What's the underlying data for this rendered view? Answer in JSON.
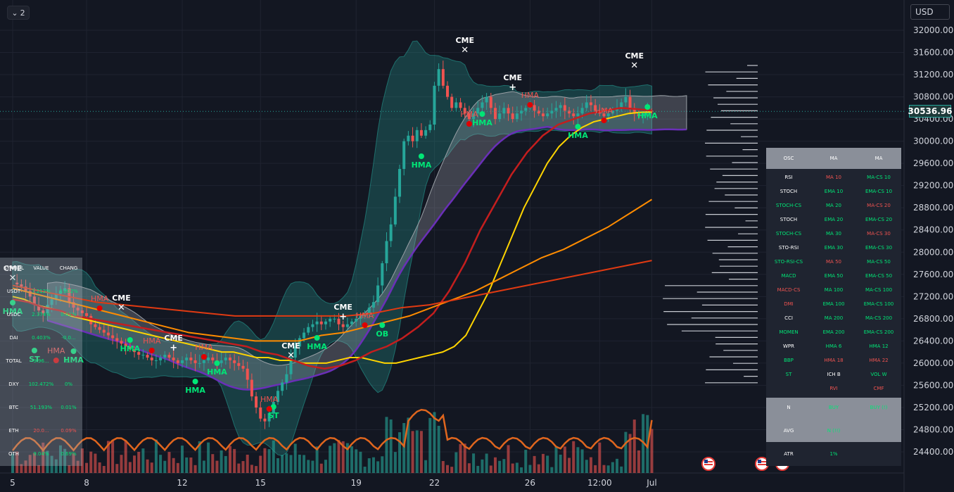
{
  "top_button": {
    "label": "2"
  },
  "currency": "USD",
  "last_price": "30536.96",
  "chart_data": {
    "type": "candlestick",
    "symbol": "",
    "ylim": [
      24150,
      32300
    ],
    "y_ticks": [
      "32000.00",
      "31600.00",
      "31200.00",
      "30800.00",
      "30400.00",
      "30000.00",
      "29600.00",
      "29200.00",
      "28800.00",
      "28400.00",
      "28000.00",
      "27600.00",
      "27200.00",
      "26800.00",
      "26400.00",
      "26000.00",
      "25600.00",
      "25200.00",
      "24800.00",
      "24400.00"
    ],
    "y_tick_values": [
      32000,
      31600,
      31200,
      30800,
      30400,
      30000,
      29600,
      29200,
      28800,
      28400,
      28000,
      27600,
      27200,
      26800,
      26400,
      26000,
      25600,
      25200,
      24800,
      24400
    ],
    "x_ticks": [
      "5",
      "8",
      "12",
      "15",
      "19",
      "22",
      "26",
      "12:00",
      "Jul"
    ],
    "x_tick_index": [
      0,
      17,
      39,
      57,
      79,
      97,
      119,
      135,
      147
    ],
    "close_path": [
      27450,
      27420,
      27380,
      27300,
      27200,
      27050,
      26950,
      26900,
      27050,
      27150,
      27250,
      27300,
      27350,
      27100,
      27000,
      26950,
      26900,
      26850,
      26700,
      26650,
      26600,
      26550,
      26500,
      26450,
      26400,
      26350,
      26300,
      26250,
      26200,
      26150,
      26150,
      26100,
      26050,
      26050,
      26100,
      26150,
      26100,
      26050,
      26000,
      26050,
      26100,
      26050,
      26000,
      26000,
      26050,
      26100,
      26050,
      26000,
      26050,
      26100,
      26050,
      26000,
      25950,
      25900,
      25700,
      25400,
      25200,
      25000,
      24950,
      25100,
      25300,
      25500,
      25650,
      25800,
      26100,
      26300,
      26450,
      26550,
      26650,
      26700,
      26750,
      26700,
      26750,
      26800,
      26800,
      26700,
      26650,
      26700,
      26750,
      26800,
      26850,
      26900,
      27000,
      27100,
      27400,
      27800,
      28200,
      28500,
      29000,
      29500,
      30000,
      30100,
      30000,
      30200,
      30100,
      30200,
      30300,
      31000,
      31300,
      31000,
      30800,
      30600,
      30700,
      30600,
      30500,
      30400,
      30500,
      30600,
      30700,
      30800,
      30600,
      30400,
      30500,
      30600,
      30500,
      30400,
      30500,
      30550,
      30600,
      30650,
      30550,
      30500,
      30450,
      30500,
      30550,
      30600,
      30650,
      30550,
      30500,
      30450,
      30500,
      30600,
      30700,
      30650,
      30550,
      30500,
      30450,
      30500,
      30550,
      30600,
      30700,
      30800,
      30600,
      30500,
      30450,
      30500,
      30550,
      30537
    ],
    "series": [
      {
        "name": "",
        "color": "#ffd400",
        "values": [
          27200,
          27150,
          27050,
          27000,
          26950,
          26850,
          26800,
          26750,
          26700,
          26650,
          26600,
          26550,
          26500,
          26450,
          26400,
          26350,
          26300,
          26250,
          26200,
          26200,
          26150,
          26100,
          26100,
          26050,
          26050,
          26000,
          26000,
          26000,
          26050,
          26100,
          26100,
          26050,
          26000,
          26000,
          26050,
          26100,
          26150,
          26200,
          26300,
          26500,
          26900,
          27300,
          27800,
          28300,
          28800,
          29200,
          29600,
          29900,
          30100,
          30250,
          30350,
          30400,
          30450,
          30500,
          30520,
          30530
        ]
      },
      {
        "name": "",
        "color": "#c41e1e",
        "values": [
          27150,
          27100,
          27000,
          26950,
          26850,
          26800,
          26750,
          26700,
          26650,
          26600,
          26550,
          26500,
          26450,
          26400,
          26350,
          26300,
          26200,
          26150,
          26050,
          25950,
          25900,
          25950,
          26050,
          26200,
          26300,
          26450,
          26650,
          26900,
          27300,
          27800,
          28400,
          28900,
          29400,
          29800,
          30100,
          30300,
          30400,
          30500,
          30550,
          30600,
          30580,
          30550
        ]
      },
      {
        "name": "",
        "color": "#ff8c00",
        "values": [
          27350,
          27250,
          27150,
          27050,
          26950,
          26850,
          26750,
          26650,
          26550,
          26500,
          26450,
          26400,
          26400,
          26400,
          26500,
          26550,
          26650,
          26750,
          26850,
          27000,
          27150,
          27300,
          27500,
          27700,
          27900,
          28050,
          28250,
          28450,
          28700,
          28950
        ]
      },
      {
        "name": "",
        "color": "#e03a12",
        "values": [
          27400,
          27300,
          27200,
          27100,
          27050,
          27000,
          26950,
          26900,
          26850,
          26850,
          26850,
          26850,
          26850,
          26900,
          27000,
          27050,
          27150,
          27250,
          27350,
          27450,
          27550,
          27650,
          27750,
          27850
        ]
      },
      {
        "name": "",
        "color": "#e0661e",
        "values": []
      }
    ],
    "labels_bull": [
      "HMA",
      "HMA",
      "HMA",
      "HMA",
      "HMA",
      "HMA",
      "HMA",
      "HMA",
      "HMA",
      "HMA",
      "ST",
      "ST",
      "OB"
    ],
    "labels_bear": [
      "HMA",
      "HMA",
      "HMA",
      "HMA",
      "HMA",
      "HMA",
      "HMA",
      "HMA",
      "HMA"
    ],
    "cme_labels": [
      "CME",
      "CME",
      "CME",
      "CME",
      "CME",
      "CME",
      "CME",
      "CME"
    ]
  },
  "mini_table": {
    "header": [
      "SYMBOL",
      "VALUE",
      "CHANG"
    ],
    "rows": [
      [
        "USDT",
        "7.212%",
        "0.002%"
      ],
      [
        "USDC",
        "2.374%",
        "0.01%"
      ],
      [
        "DAI",
        "0.403%",
        "-0.0..."
      ],
      [
        "TOTAL",
        "9.96...",
        "-0..."
      ],
      [
        "DXY",
        "102.472%",
        "0%"
      ],
      [
        "BTC",
        "51.193%",
        "0.01%"
      ],
      [
        "ETH",
        "20.0...",
        "0.09%"
      ],
      [
        "OTH",
        "9.04%",
        "0.69%"
      ]
    ]
  },
  "osc_table": {
    "header": [
      "OSC",
      "MA",
      "MA"
    ],
    "rows": [
      [
        "RSI",
        "MA 10",
        "MA-CS 10"
      ],
      [
        "STOCH",
        "EMA 10",
        "EMA-CS 10"
      ],
      [
        "STOCH-CS",
        "MA 20",
        "MA-CS 20"
      ],
      [
        "STOCH",
        "EMA 20",
        "EMA-CS 20"
      ],
      [
        "STOCH-CS",
        "MA 30",
        "MA-CS 30"
      ],
      [
        "STO-RSI",
        "EMA 30",
        "EMA-CS 30"
      ],
      [
        "STO-RSI-CS",
        "MA 50",
        "MA-CS 50"
      ],
      [
        "MACD",
        "EMA 50",
        "EMA-CS 50"
      ],
      [
        "MACD-CS",
        "MA 100",
        "MA-CS 100"
      ],
      [
        "DMI",
        "EMA 100",
        "EMA-CS 100"
      ],
      [
        "CCI",
        "MA 200",
        "MA-CS 200"
      ],
      [
        "MOMEN",
        "EMA 200",
        "EMA-CS 200"
      ],
      [
        "WPR",
        "HMA 6",
        "HMA 12"
      ],
      [
        "BBP",
        "HMA 18",
        "HMA 22"
      ],
      [
        "ST",
        "ICH B",
        "VOL W"
      ],
      [
        "",
        "RVI",
        "CMF"
      ]
    ],
    "colors": [
      [
        "#ffffff",
        "#ef5350",
        "#00e676"
      ],
      [
        "#ffffff",
        "#00e676",
        "#00e676"
      ],
      [
        "#00e676",
        "#00e676",
        "#ef5350"
      ],
      [
        "#ffffff",
        "#00e676",
        "#00e676"
      ],
      [
        "#00e676",
        "#00e676",
        "#ef5350"
      ],
      [
        "#ffffff",
        "#00e676",
        "#00e676"
      ],
      [
        "#00e676",
        "#ef5350",
        "#00e676"
      ],
      [
        "#00e676",
        "#00e676",
        "#00e676"
      ],
      [
        "#ef5350",
        "#00e676",
        "#00e676"
      ],
      [
        "#ef5350",
        "#00e676",
        "#00e676"
      ],
      [
        "#ffffff",
        "#00e676",
        "#00e676"
      ],
      [
        "#00e676",
        "#00e676",
        "#00e676"
      ],
      [
        "#ffffff",
        "#00e676",
        "#00e676"
      ],
      [
        "#00e676",
        "#ef5350",
        "#ef5350"
      ],
      [
        "#00e676",
        "#ffffff",
        "#00e676"
      ],
      [
        "#ffffff",
        "#ef5350",
        "#ef5350"
      ]
    ],
    "summary": [
      {
        "label": "N",
        "a": "BUY",
        "b": "BUY (!)"
      },
      {
        "label": "AVG",
        "a": "N (!!)",
        "b": ""
      },
      {
        "label": "ATR",
        "a": "1%",
        "b": ""
      }
    ]
  }
}
